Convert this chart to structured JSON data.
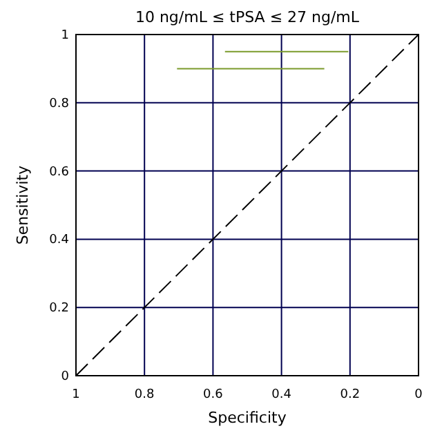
{
  "chart_data": {
    "type": "line",
    "title": "10 ng/mL ≤ tPSA ≤ 27 ng/mL",
    "xlabel": "Specificity",
    "ylabel": "Sensitivity",
    "xlim": [
      1,
      0
    ],
    "ylim": [
      0,
      1
    ],
    "xticks": [
      1,
      0.8,
      0.6,
      0.4,
      0.2,
      0
    ],
    "yticks": [
      0,
      0.2,
      0.4,
      0.6,
      0.8,
      1
    ],
    "grid": true,
    "marker": "none",
    "series": [
      {
        "color": "#000000",
        "line_style": "dashed",
        "x": [
          1,
          0
        ],
        "values": [
          0,
          1
        ]
      },
      {
        "color": "#7a9a2a",
        "line_style": "solid",
        "x": [
          0.565,
          0.205
        ],
        "values": [
          0.95,
          0.95
        ]
      },
      {
        "color": "#7a9a2a",
        "line_style": "solid",
        "x": [
          0.705,
          0.275
        ],
        "values": [
          0.9,
          0.9
        ]
      }
    ]
  }
}
